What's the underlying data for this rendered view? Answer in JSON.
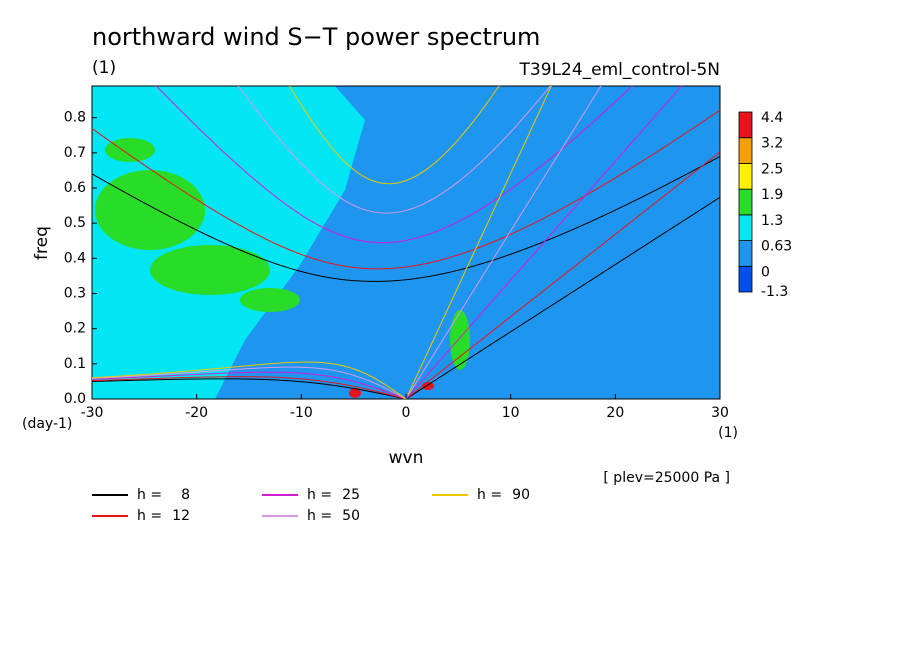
{
  "chart_data": {
    "type": "dispersion",
    "title": "northward wind S−T power spectrum",
    "title_unit": "(1)",
    "subtitle": "T39L24_eml_control-5N",
    "y_label": "freq",
    "y_unit": "(day-1)",
    "x_label": "wvn",
    "x_unit": "(1)",
    "annotation": "[ plev=25000 Pa ]",
    "xlim": [
      -30,
      30
    ],
    "xticks": [
      -30,
      -20,
      -10,
      0,
      10,
      20,
      30
    ],
    "ylim": [
      0,
      0.89
    ],
    "yticks": [
      {
        "value": 0,
        "label": "0.0"
      },
      0.1,
      0.2,
      0.3,
      0.4,
      0.5,
      0.6,
      0.7,
      0.8
    ],
    "legend_label": "h =",
    "series": [
      {
        "h": 8,
        "color": "#000000"
      },
      {
        "h": 12,
        "color": "#e8141c"
      },
      {
        "h": 25,
        "color": "#d21ed2"
      },
      {
        "h": 50,
        "color": "#d898e8"
      },
      {
        "h": 90,
        "color": "#f0c800"
      }
    ],
    "colorbar": {
      "levels": [
        -1.3,
        0,
        0.63,
        1.3,
        1.9,
        2.5,
        3.2,
        4.4
      ],
      "colors": [
        "#0050f0",
        "#1e96f0",
        "#00e6f5",
        "#28dc28",
        "#fff000",
        "#f5a000",
        "#e8141c"
      ]
    }
  }
}
